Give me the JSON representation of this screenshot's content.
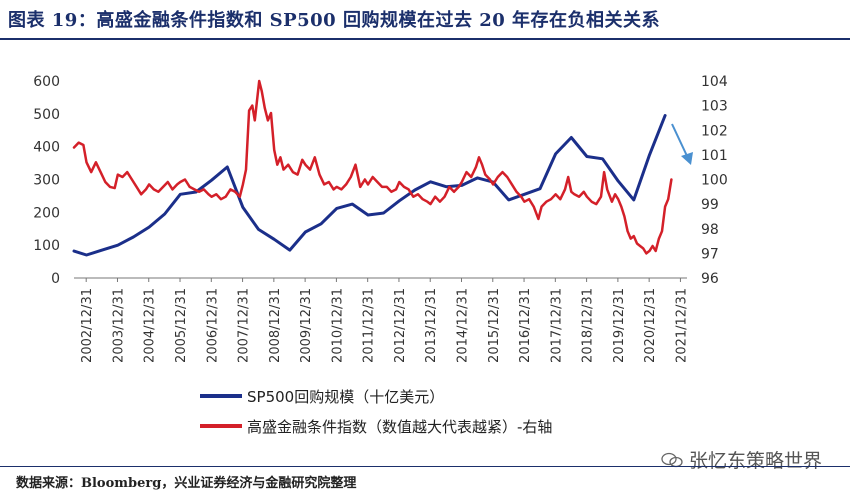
{
  "title": "图表 19：高盛金融条件指数和 SP500 回购规模在过去 20 年存在负相关关系",
  "source": "数据来源：Bloomberg，兴业证券经济与金融研究院整理",
  "watermark": "张忆东策略世界",
  "chart_data": {
    "type": "line",
    "categories": [
      "2002/12/31",
      "2003/12/31",
      "2004/12/31",
      "2005/12/31",
      "2006/12/31",
      "2007/12/31",
      "2008/12/31",
      "2009/12/31",
      "2010/12/31",
      "2011/12/31",
      "2012/12/31",
      "2013/12/31",
      "2014/12/31",
      "2015/12/31",
      "2016/12/31",
      "2017/12/31",
      "2018/12/31",
      "2019/12/31",
      "2020/12/31",
      "2021/12/31"
    ],
    "x_range": [
      2002.6,
      2022.2
    ],
    "y_left": {
      "min": 0,
      "max": 600,
      "ticks": [
        0,
        100,
        200,
        300,
        400,
        500,
        600
      ]
    },
    "y_right": {
      "min": 96,
      "max": 104,
      "ticks": [
        96,
        97,
        98,
        99,
        100,
        101,
        102,
        103,
        104
      ]
    },
    "series": [
      {
        "name": "SP500回购规模（十亿美元）",
        "axis": "left",
        "color": "#1b2f8a",
        "points": [
          [
            2002.6,
            82
          ],
          [
            2003.0,
            70
          ],
          [
            2003.5,
            85
          ],
          [
            2004.0,
            100
          ],
          [
            2004.5,
            125
          ],
          [
            2005.0,
            155
          ],
          [
            2005.5,
            195
          ],
          [
            2006.0,
            255
          ],
          [
            2006.5,
            262
          ],
          [
            2007.0,
            298
          ],
          [
            2007.5,
            338
          ],
          [
            2008.0,
            215
          ],
          [
            2008.5,
            148
          ],
          [
            2009.0,
            118
          ],
          [
            2009.5,
            85
          ],
          [
            2010.0,
            140
          ],
          [
            2010.5,
            165
          ],
          [
            2011.0,
            212
          ],
          [
            2011.5,
            225
          ],
          [
            2012.0,
            192
          ],
          [
            2012.5,
            198
          ],
          [
            2013.0,
            235
          ],
          [
            2013.5,
            268
          ],
          [
            2014.0,
            293
          ],
          [
            2014.5,
            278
          ],
          [
            2015.0,
            282
          ],
          [
            2015.5,
            305
          ],
          [
            2016.0,
            292
          ],
          [
            2016.5,
            238
          ],
          [
            2017.0,
            255
          ],
          [
            2017.5,
            272
          ],
          [
            2018.0,
            378
          ],
          [
            2018.5,
            428
          ],
          [
            2019.0,
            370
          ],
          [
            2019.5,
            363
          ],
          [
            2020.0,
            295
          ],
          [
            2020.5,
            238
          ],
          [
            2021.0,
            375
          ],
          [
            2021.5,
            495
          ]
        ]
      },
      {
        "name": "高盛金融条件指数（数值越大代表越紧）-右轴",
        "axis": "right",
        "color": "#d42029",
        "points": [
          [
            2002.6,
            101.3
          ],
          [
            2002.75,
            101.5
          ],
          [
            2002.9,
            101.4
          ],
          [
            2003.0,
            100.7
          ],
          [
            2003.15,
            100.3
          ],
          [
            2003.3,
            100.7
          ],
          [
            2003.45,
            100.3
          ],
          [
            2003.6,
            99.9
          ],
          [
            2003.75,
            99.7
          ],
          [
            2003.9,
            99.65
          ],
          [
            2004.0,
            100.2
          ],
          [
            2004.15,
            100.1
          ],
          [
            2004.3,
            100.3
          ],
          [
            2004.45,
            100.0
          ],
          [
            2004.6,
            99.7
          ],
          [
            2004.75,
            99.4
          ],
          [
            2004.9,
            99.6
          ],
          [
            2005.0,
            99.8
          ],
          [
            2005.15,
            99.6
          ],
          [
            2005.3,
            99.5
          ],
          [
            2005.45,
            99.7
          ],
          [
            2005.6,
            99.9
          ],
          [
            2005.75,
            99.6
          ],
          [
            2005.9,
            99.8
          ],
          [
            2006.0,
            99.9
          ],
          [
            2006.15,
            100.0
          ],
          [
            2006.3,
            99.7
          ],
          [
            2006.45,
            99.6
          ],
          [
            2006.6,
            99.5
          ],
          [
            2006.75,
            99.6
          ],
          [
            2006.9,
            99.4
          ],
          [
            2007.0,
            99.3
          ],
          [
            2007.15,
            99.4
          ],
          [
            2007.3,
            99.2
          ],
          [
            2007.45,
            99.3
          ],
          [
            2007.6,
            99.6
          ],
          [
            2007.75,
            99.5
          ],
          [
            2007.9,
            99.3
          ],
          [
            2008.0,
            99.8
          ],
          [
            2008.1,
            100.4
          ],
          [
            2008.2,
            102.8
          ],
          [
            2008.3,
            103.0
          ],
          [
            2008.38,
            102.4
          ],
          [
            2008.45,
            103.2
          ],
          [
            2008.52,
            104.0
          ],
          [
            2008.6,
            103.6
          ],
          [
            2008.7,
            102.9
          ],
          [
            2008.8,
            102.4
          ],
          [
            2008.9,
            102.7
          ],
          [
            2009.0,
            101.2
          ],
          [
            2009.1,
            100.6
          ],
          [
            2009.2,
            100.9
          ],
          [
            2009.3,
            100.4
          ],
          [
            2009.45,
            100.6
          ],
          [
            2009.6,
            100.3
          ],
          [
            2009.75,
            100.2
          ],
          [
            2009.9,
            100.8
          ],
          [
            2010.0,
            100.6
          ],
          [
            2010.15,
            100.4
          ],
          [
            2010.3,
            100.9
          ],
          [
            2010.45,
            100.2
          ],
          [
            2010.6,
            99.8
          ],
          [
            2010.75,
            99.9
          ],
          [
            2010.9,
            99.6
          ],
          [
            2011.0,
            99.7
          ],
          [
            2011.15,
            99.6
          ],
          [
            2011.3,
            99.8
          ],
          [
            2011.45,
            100.1
          ],
          [
            2011.6,
            100.6
          ],
          [
            2011.75,
            99.7
          ],
          [
            2011.9,
            100.0
          ],
          [
            2012.0,
            99.8
          ],
          [
            2012.15,
            100.1
          ],
          [
            2012.3,
            99.9
          ],
          [
            2012.45,
            99.7
          ],
          [
            2012.6,
            99.7
          ],
          [
            2012.75,
            99.5
          ],
          [
            2012.9,
            99.6
          ],
          [
            2013.0,
            99.9
          ],
          [
            2013.15,
            99.7
          ],
          [
            2013.3,
            99.6
          ],
          [
            2013.45,
            99.3
          ],
          [
            2013.6,
            99.4
          ],
          [
            2013.75,
            99.2
          ],
          [
            2013.9,
            99.1
          ],
          [
            2014.0,
            99.0
          ],
          [
            2014.15,
            99.3
          ],
          [
            2014.3,
            99.1
          ],
          [
            2014.45,
            99.3
          ],
          [
            2014.6,
            99.7
          ],
          [
            2014.75,
            99.5
          ],
          [
            2014.9,
            99.7
          ],
          [
            2015.0,
            99.9
          ],
          [
            2015.15,
            100.3
          ],
          [
            2015.3,
            100.1
          ],
          [
            2015.45,
            100.5
          ],
          [
            2015.55,
            100.9
          ],
          [
            2015.65,
            100.6
          ],
          [
            2015.75,
            100.2
          ],
          [
            2015.9,
            100.0
          ],
          [
            2016.0,
            99.8
          ],
          [
            2016.15,
            100.1
          ],
          [
            2016.3,
            100.3
          ],
          [
            2016.45,
            100.1
          ],
          [
            2016.6,
            99.8
          ],
          [
            2016.75,
            99.5
          ],
          [
            2016.9,
            99.3
          ],
          [
            2017.0,
            99.1
          ],
          [
            2017.15,
            99.2
          ],
          [
            2017.3,
            98.9
          ],
          [
            2017.45,
            98.4
          ],
          [
            2017.55,
            98.9
          ],
          [
            2017.7,
            99.1
          ],
          [
            2017.85,
            99.2
          ],
          [
            2018.0,
            99.4
          ],
          [
            2018.15,
            99.2
          ],
          [
            2018.3,
            99.6
          ],
          [
            2018.4,
            100.1
          ],
          [
            2018.5,
            99.5
          ],
          [
            2018.6,
            99.4
          ],
          [
            2018.75,
            99.3
          ],
          [
            2018.9,
            99.5
          ],
          [
            2019.0,
            99.3
          ],
          [
            2019.15,
            99.1
          ],
          [
            2019.3,
            99.0
          ],
          [
            2019.45,
            99.3
          ],
          [
            2019.55,
            100.3
          ],
          [
            2019.65,
            99.6
          ],
          [
            2019.8,
            99.1
          ],
          [
            2019.9,
            99.4
          ],
          [
            2020.0,
            99.2
          ],
          [
            2020.1,
            98.9
          ],
          [
            2020.2,
            98.5
          ],
          [
            2020.3,
            97.9
          ],
          [
            2020.4,
            97.6
          ],
          [
            2020.5,
            97.7
          ],
          [
            2020.6,
            97.4
          ],
          [
            2020.7,
            97.3
          ],
          [
            2020.8,
            97.2
          ],
          [
            2020.9,
            97.0
          ],
          [
            2021.0,
            97.1
          ],
          [
            2021.1,
            97.3
          ],
          [
            2021.2,
            97.1
          ],
          [
            2021.3,
            97.6
          ],
          [
            2021.4,
            97.9
          ],
          [
            2021.5,
            98.9
          ],
          [
            2021.6,
            99.2
          ],
          [
            2021.7,
            100.0
          ]
        ]
      }
    ]
  }
}
